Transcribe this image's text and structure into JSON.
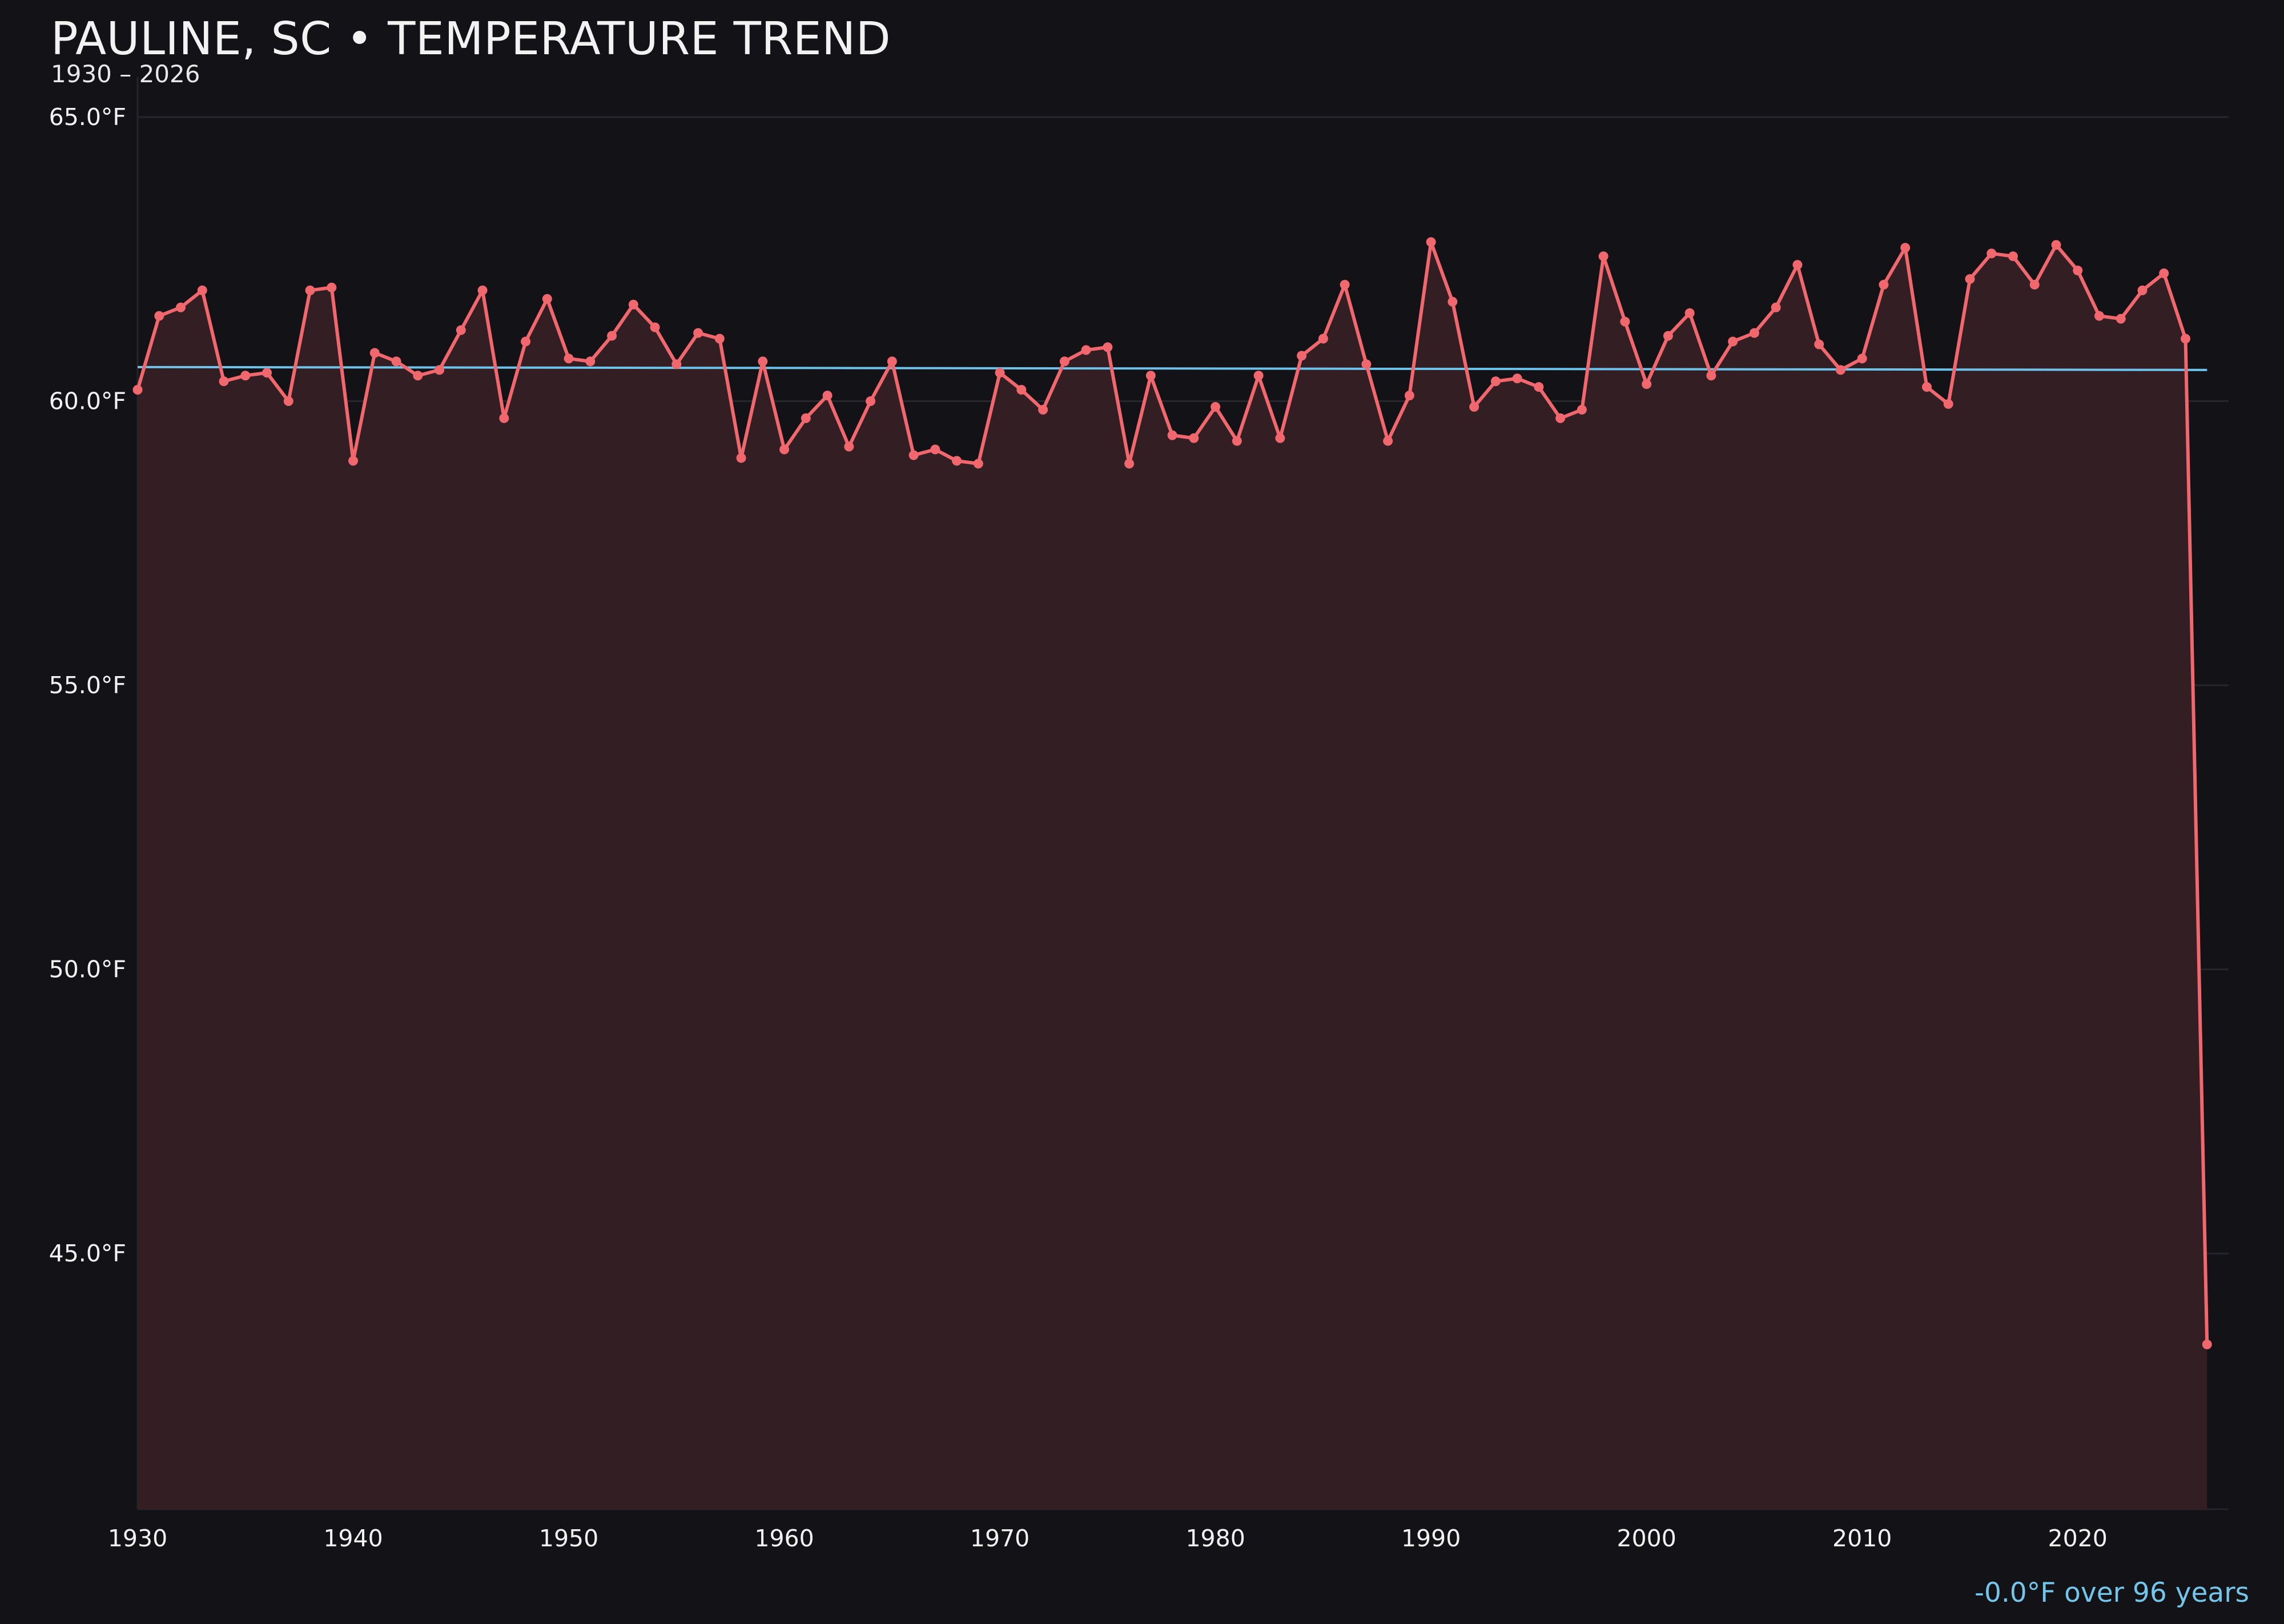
{
  "header": {
    "title": "PAULINE, SC • TEMPERATURE TREND",
    "subtitle": "1930 – 2026"
  },
  "footer": {
    "trend_text": "-0.0°F over 96 years"
  },
  "colors": {
    "background": "#121217",
    "series_line": "#f0676d",
    "series_fill": "#331e24",
    "trend_line": "#6ec3ea",
    "gridline": "#26262c",
    "axis_text": "#f2f2f2",
    "annotation": "#73c5ea"
  },
  "chart_data": {
    "type": "line",
    "title": "PAULINE, SC • TEMPERATURE TREND",
    "subtitle": "1930 – 2026",
    "xlabel": "",
    "ylabel": "",
    "xlim": [
      1930,
      2027
    ],
    "ylim": [
      40.5,
      65.0
    ],
    "x_ticks": [
      1930,
      1940,
      1950,
      1960,
      1970,
      1980,
      1990,
      2000,
      2010,
      2020
    ],
    "x_tick_labels": [
      "1930",
      "1940",
      "1950",
      "1960",
      "1970",
      "1980",
      "1990",
      "2000",
      "2010",
      "2020"
    ],
    "y_ticks": [
      45.0,
      50.0,
      55.0,
      60.0,
      65.0
    ],
    "y_tick_labels": [
      "45.0°F",
      "50.0°F",
      "55.0°F",
      "60.0°F",
      "65.0°F"
    ],
    "grid": true,
    "legend": "none",
    "series": [
      {
        "name": "",
        "style": "line-with-markers-area-fill",
        "x": [
          1930,
          1931,
          1932,
          1933,
          1934,
          1935,
          1936,
          1937,
          1938,
          1939,
          1940,
          1941,
          1942,
          1943,
          1944,
          1945,
          1946,
          1947,
          1948,
          1949,
          1950,
          1951,
          1952,
          1953,
          1954,
          1955,
          1956,
          1957,
          1958,
          1959,
          1960,
          1961,
          1962,
          1963,
          1964,
          1965,
          1966,
          1967,
          1968,
          1969,
          1970,
          1971,
          1972,
          1973,
          1974,
          1975,
          1976,
          1977,
          1978,
          1979,
          1980,
          1981,
          1982,
          1983,
          1984,
          1985,
          1986,
          1987,
          1988,
          1989,
          1990,
          1991,
          1992,
          1993,
          1994,
          1995,
          1996,
          1997,
          1998,
          1999,
          2000,
          2001,
          2002,
          2003,
          2004,
          2005,
          2006,
          2007,
          2008,
          2009,
          2010,
          2011,
          2012,
          2013,
          2014,
          2015,
          2016,
          2017,
          2018,
          2019,
          2020,
          2021,
          2022,
          2023,
          2024,
          2025,
          2026
        ],
        "values": [
          60.2,
          61.5,
          61.65,
          61.95,
          60.35,
          60.45,
          60.5,
          60.0,
          61.95,
          62.0,
          58.95,
          60.85,
          60.7,
          60.45,
          60.55,
          61.25,
          61.95,
          59.7,
          61.05,
          61.8,
          60.75,
          60.7,
          61.15,
          61.7,
          61.3,
          60.65,
          61.2,
          61.1,
          59.0,
          60.7,
          59.15,
          59.7,
          60.1,
          59.2,
          60.0,
          60.7,
          59.05,
          59.15,
          58.95,
          58.9,
          60.5,
          60.2,
          59.85,
          60.7,
          60.9,
          60.95,
          58.9,
          60.45,
          59.4,
          59.35,
          59.9,
          59.3,
          60.45,
          59.35,
          60.8,
          61.1,
          62.05,
          60.65,
          59.3,
          60.1,
          62.8,
          61.75,
          59.9,
          60.35,
          60.4,
          60.25,
          59.7,
          59.85,
          62.55,
          61.4,
          60.3,
          61.15,
          61.55,
          60.45,
          61.05,
          61.2,
          61.65,
          62.4,
          61.0,
          60.55,
          60.75,
          62.05,
          62.7,
          60.25,
          59.95,
          62.15,
          62.6,
          62.55,
          62.05,
          62.75,
          62.3,
          61.5,
          61.45,
          61.95,
          62.25,
          61.1,
          43.4
        ]
      },
      {
        "name": "",
        "style": "trend-line",
        "x": [
          1930,
          2026
        ],
        "values": [
          60.6,
          60.55
        ]
      }
    ],
    "annotations": [
      "-0.0°F over 96 years"
    ]
  }
}
